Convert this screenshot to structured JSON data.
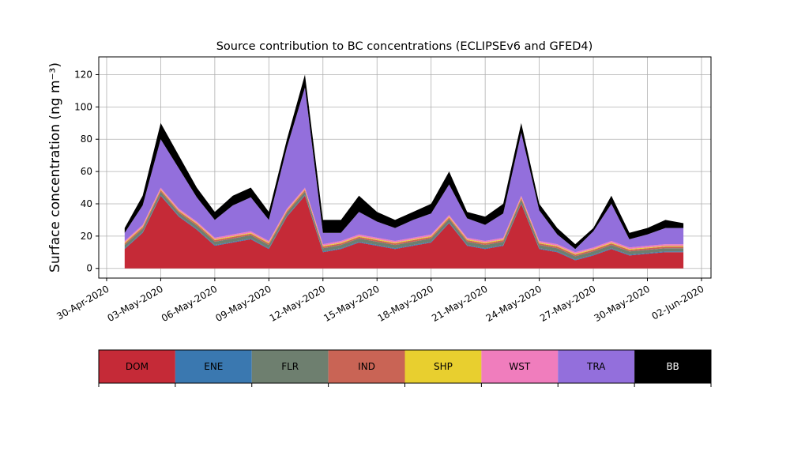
{
  "chart_data": {
    "type": "stacked_area",
    "title": "Source contribution to BC concentrations (ECLIPSEv6 and GFED4)",
    "ylabel": "Surface concentration (ng m⁻³)",
    "x": [
      "2020-05-01",
      "2020-05-02",
      "2020-05-03",
      "2020-05-04",
      "2020-05-05",
      "2020-05-06",
      "2020-05-07",
      "2020-05-08",
      "2020-05-09",
      "2020-05-10",
      "2020-05-11",
      "2020-05-12",
      "2020-05-13",
      "2020-05-14",
      "2020-05-15",
      "2020-05-16",
      "2020-05-17",
      "2020-05-18",
      "2020-05-19",
      "2020-05-20",
      "2020-05-21",
      "2020-05-22",
      "2020-05-23",
      "2020-05-24",
      "2020-05-25",
      "2020-05-26",
      "2020-05-27",
      "2020-05-28",
      "2020-05-29",
      "2020-05-30",
      "2020-05-31",
      "2020-06-01"
    ],
    "series": [
      {
        "name": "DOM",
        "color": "#c52a37",
        "values": [
          12,
          22,
          45,
          32,
          24,
          14,
          16,
          18,
          12,
          32,
          45,
          10,
          12,
          16,
          14,
          12,
          14,
          16,
          28,
          14,
          12,
          14,
          40,
          12,
          10,
          5,
          8,
          12,
          8,
          9,
          10,
          10
        ]
      },
      {
        "name": "ENE",
        "color": "#3a78b0",
        "values": [
          0.5,
          0.5,
          0.5,
          0.5,
          0.5,
          0.5,
          0.5,
          0.5,
          0.5,
          0.5,
          0.5,
          0.5,
          0.5,
          0.5,
          0.5,
          0.5,
          0.5,
          0.5,
          0.5,
          0.5,
          0.5,
          0.5,
          0.5,
          0.5,
          0.5,
          0.5,
          0.5,
          0.5,
          0.5,
          0.5,
          0.5,
          0.5
        ]
      },
      {
        "name": "FLR",
        "color": "#6e7f6f",
        "values": [
          2,
          2,
          2,
          2,
          2,
          2,
          2,
          2,
          2,
          2,
          2,
          2,
          2,
          2,
          2,
          2,
          2,
          2,
          2,
          2,
          2,
          2,
          2,
          2,
          2,
          2,
          2,
          2,
          2,
          2,
          2,
          2
        ]
      },
      {
        "name": "IND",
        "color": "#c96455",
        "values": [
          1,
          1,
          1,
          1,
          1,
          1,
          1,
          1,
          1,
          1,
          1,
          1,
          1,
          1,
          1,
          1,
          1,
          1,
          1,
          1,
          1,
          1,
          1,
          1,
          1,
          1,
          1,
          1,
          1,
          1,
          1,
          1
        ]
      },
      {
        "name": "SHP",
        "color": "#e8cf2f",
        "values": [
          0.5,
          0.5,
          0.5,
          0.5,
          0.5,
          0.5,
          0.5,
          0.5,
          0.5,
          0.5,
          0.5,
          0.5,
          0.5,
          0.5,
          0.5,
          0.5,
          0.5,
          0.5,
          0.5,
          0.5,
          0.5,
          0.5,
          0.5,
          0.5,
          0.5,
          0.5,
          0.5,
          0.5,
          0.5,
          0.5,
          0.5,
          0.5
        ]
      },
      {
        "name": "WST",
        "color": "#f07dbd",
        "values": [
          1,
          1,
          1,
          1,
          1,
          1,
          1,
          1,
          1,
          1,
          1,
          1,
          1,
          1,
          1,
          1,
          1,
          1,
          1,
          1,
          1,
          1,
          1,
          1,
          1,
          1,
          1,
          1,
          1,
          1,
          1,
          1
        ]
      },
      {
        "name": "TRA",
        "color": "#936fdc",
        "values": [
          5,
          12,
          30,
          25,
          15,
          11,
          18,
          21,
          13,
          38,
          62,
          7,
          5,
          14,
          10,
          8,
          11,
          13,
          19,
          12,
          10,
          15,
          39,
          19,
          6,
          2,
          10,
          23,
          5,
          7,
          10,
          10
        ]
      },
      {
        "name": "BB",
        "color": "#000000",
        "values": [
          3,
          6,
          10,
          8,
          6,
          5,
          6,
          6,
          5,
          5,
          8,
          8,
          8,
          10,
          6,
          5,
          5,
          6,
          8,
          4,
          5,
          6,
          6,
          4,
          4,
          3,
          2,
          5,
          4,
          4,
          5,
          3
        ]
      }
    ],
    "xlim": [
      "2020-04-29T13:30",
      "2020-06-02T12:40"
    ],
    "xticks": [
      {
        "value": "2020-04-30",
        "label": "30-Apr-2020"
      },
      {
        "value": "2020-05-03",
        "label": "03-May-2020"
      },
      {
        "value": "2020-05-06",
        "label": "06-May-2020"
      },
      {
        "value": "2020-05-09",
        "label": "09-May-2020"
      },
      {
        "value": "2020-05-12",
        "label": "12-May-2020"
      },
      {
        "value": "2020-05-15",
        "label": "15-May-2020"
      },
      {
        "value": "2020-05-18",
        "label": "18-May-2020"
      },
      {
        "value": "2020-05-21",
        "label": "21-May-2020"
      },
      {
        "value": "2020-05-24",
        "label": "24-May-2020"
      },
      {
        "value": "2020-05-27",
        "label": "27-May-2020"
      },
      {
        "value": "2020-05-30",
        "label": "30-May-2020"
      },
      {
        "value": "2020-06-02",
        "label": "02-Jun-2020"
      }
    ],
    "ylim": [
      -6,
      131
    ],
    "yticks": [
      0,
      20,
      40,
      60,
      80,
      100,
      120
    ],
    "grid": true
  }
}
